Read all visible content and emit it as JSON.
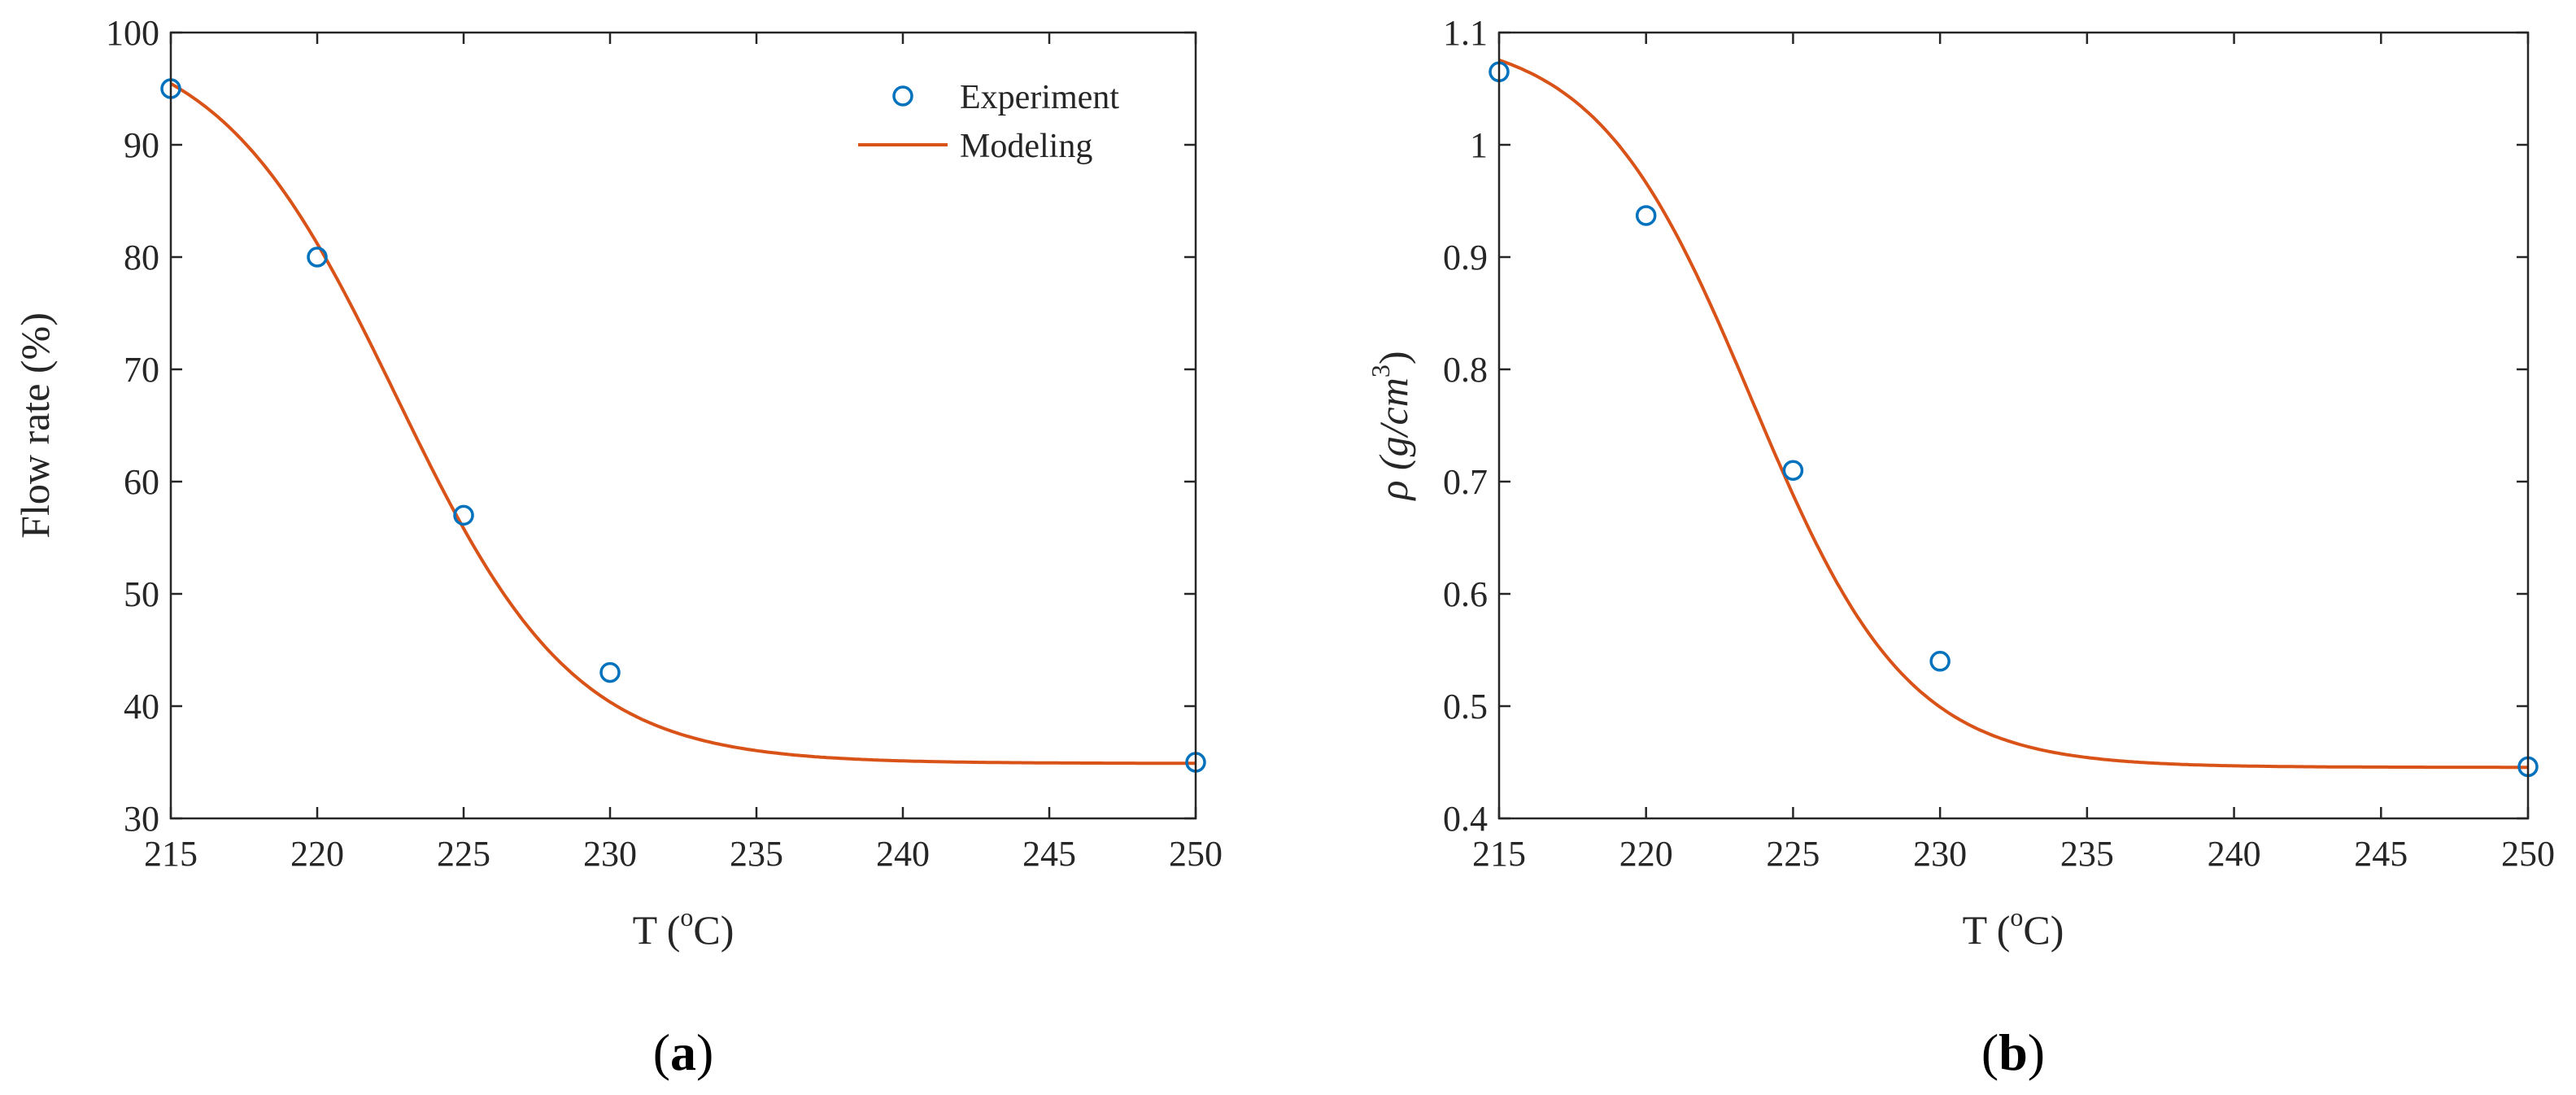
{
  "colors": {
    "experiment": "#0072BD",
    "modeling": "#D95319",
    "axis": "#262626"
  },
  "legend": {
    "experiment_label": "Experiment",
    "modeling_label": "Modeling"
  },
  "chart_data": [
    {
      "type": "scatter",
      "panel": "a",
      "panel_label": "a",
      "xlabel_main": "T (",
      "xlabel_sup": "o",
      "xlabel_tail": "C)",
      "ylabel": "Flow rate (%)",
      "xlim": [
        215,
        250
      ],
      "ylim": [
        30,
        100
      ],
      "xticks": [
        215,
        220,
        225,
        230,
        235,
        240,
        245,
        250
      ],
      "yticks": [
        30,
        40,
        50,
        60,
        70,
        80,
        90,
        100
      ],
      "grid": false,
      "legend_position": "top-right",
      "series": [
        {
          "name": "Experiment",
          "kind": "markers",
          "x": [
            215,
            220,
            225,
            230,
            250
          ],
          "y": [
            95,
            80,
            57,
            43,
            35
          ]
        },
        {
          "name": "Modeling",
          "kind": "line",
          "sigmoid": {
            "low": 34.9,
            "high": 100.3,
            "center": 222.7,
            "scale": 3.05
          }
        }
      ]
    },
    {
      "type": "scatter",
      "panel": "b",
      "panel_label": "b",
      "xlabel_main": "T (",
      "xlabel_sup": "o",
      "xlabel_tail": "C)",
      "ylabel_main": "ρ (g/cm",
      "ylabel_sup": "3",
      "ylabel_tail": ")",
      "xlim": [
        215,
        250
      ],
      "ylim": [
        0.4,
        1.1
      ],
      "xticks": [
        215,
        220,
        225,
        230,
        235,
        240,
        245,
        250
      ],
      "yticks": [
        "0.4",
        "0.5",
        "0.6",
        "0.7",
        "0.8",
        "0.9",
        "1",
        "1.1"
      ],
      "grid": false,
      "series": [
        {
          "name": "Experiment",
          "kind": "markers",
          "x": [
            215,
            220,
            225,
            230,
            250
          ],
          "y": [
            1.065,
            0.937,
            0.71,
            0.54,
            0.446
          ]
        },
        {
          "name": "Modeling",
          "kind": "line",
          "sigmoid": {
            "low": 0.4455,
            "high": 1.1,
            "center": 223.6,
            "scale": 2.65
          }
        }
      ]
    }
  ]
}
